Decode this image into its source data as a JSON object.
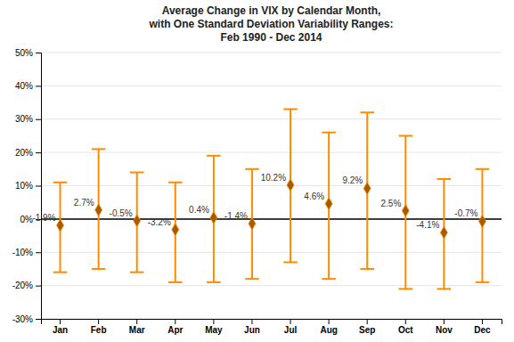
{
  "chart_data": {
    "type": "errorbar",
    "title": "Average Change in VIX by Calendar Month,\nwith One Standard Deviation Variability Ranges:\nFeb 1990 - Dec 2014",
    "categories": [
      "Jan",
      "Feb",
      "Mar",
      "Apr",
      "May",
      "Jun",
      "Jul",
      "Aug",
      "Sep",
      "Oct",
      "Nov",
      "Dec"
    ],
    "series": [
      {
        "values": [
          -1.9,
          2.7,
          -0.5,
          -3.2,
          0.4,
          -1.4,
          10.2,
          4.6,
          9.2,
          2.5,
          -4.1,
          -0.7
        ],
        "value_labels": [
          "-1.9%",
          "2.7%",
          "-0.5%",
          "-3.2%",
          "0.4%",
          "-1.4%",
          "10.2%",
          "4.6%",
          "9.2%",
          "2.5%",
          "-4.1%",
          "-0.7%"
        ],
        "upper": [
          11.0,
          21.0,
          14.0,
          11.0,
          19.0,
          15.0,
          33.0,
          26.0,
          32.0,
          25.0,
          12.0,
          15.0
        ],
        "lower": [
          -16.0,
          -15.0,
          -16.0,
          -19.0,
          -19.0,
          -18.0,
          -13.0,
          -18.0,
          -15.0,
          -21.0,
          -21.0,
          -19.0
        ],
        "color": "#FF8C00",
        "marker": "diamond"
      }
    ],
    "ylim": [
      -30,
      50
    ],
    "yticks": [
      {
        "value": -30,
        "label": "-30%"
      },
      {
        "value": -20,
        "label": "-20%"
      },
      {
        "value": -10,
        "label": "-10%"
      },
      {
        "value": 0,
        "label": "0%"
      },
      {
        "value": 10,
        "label": "10%"
      },
      {
        "value": 20,
        "label": "20%"
      },
      {
        "value": 30,
        "label": "30%"
      },
      {
        "value": 40,
        "label": "40%"
      },
      {
        "value": 50,
        "label": "50%"
      }
    ],
    "grid": true,
    "data_labels": true
  }
}
